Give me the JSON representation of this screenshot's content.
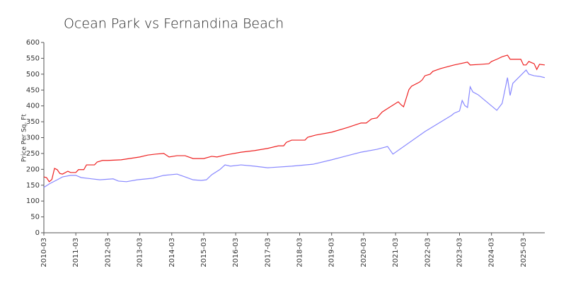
{
  "chart_data": {
    "type": "line",
    "title": "Ocean Park vs Fernandina Beach",
    "y_label": "Price Per Sq. Ft",
    "xlim": [
      "2010-03",
      "2025-11"
    ],
    "xticks": [
      "2010-03",
      "2011-03",
      "2012-03",
      "2013-03",
      "2014-03",
      "2015-03",
      "2016-03",
      "2017-03",
      "2018-03",
      "2019-03",
      "2020-03",
      "2021-03",
      "2022-03",
      "2023-03",
      "2024-03",
      "2025-03"
    ],
    "ylim": [
      0,
      600
    ],
    "yticks": [
      0,
      50,
      100,
      150,
      200,
      250,
      300,
      350,
      400,
      450,
      500,
      550,
      600
    ],
    "series": [
      {
        "color": "#ee2222",
        "x": [
          "2010-03",
          "2010-04",
          "2010-05",
          "2010-06",
          "2010-07",
          "2010-08",
          "2010-09",
          "2010-10",
          "2010-12",
          "2011-01",
          "2011-03",
          "2011-04",
          "2011-06",
          "2011-07",
          "2011-10",
          "2011-11",
          "2012-01",
          "2012-03",
          "2012-08",
          "2013-03",
          "2013-06",
          "2013-09",
          "2013-12",
          "2014-02",
          "2014-05",
          "2014-08",
          "2014-11",
          "2015-03",
          "2015-06",
          "2015-08",
          "2015-11",
          "2016-05",
          "2016-10",
          "2017-03",
          "2017-07",
          "2017-09",
          "2017-10",
          "2017-12",
          "2018-05",
          "2018-06",
          "2018-09",
          "2019-03",
          "2019-09",
          "2020-02",
          "2020-04",
          "2020-06",
          "2020-08",
          "2020-10",
          "2021-01",
          "2021-04",
          "2021-05",
          "2021-06",
          "2021-08",
          "2021-09",
          "2021-12",
          "2022-01",
          "2022-02",
          "2022-04",
          "2022-05",
          "2022-08",
          "2023-01",
          "2023-06",
          "2023-07",
          "2023-11",
          "2024-02",
          "2024-03",
          "2024-05",
          "2024-07",
          "2024-09",
          "2024-10",
          "2024-12",
          "2025-02",
          "2025-03",
          "2025-04",
          "2025-05",
          "2025-07",
          "2025-08",
          "2025-09",
          "2025-11"
        ],
        "values": [
          176,
          174,
          161,
          168,
          203,
          199,
          187,
          185,
          194,
          190,
          190,
          199,
          199,
          214,
          214,
          223,
          228,
          228,
          230,
          239,
          245,
          248,
          250,
          239,
          243,
          243,
          234,
          234,
          241,
          239,
          245,
          254,
          259,
          266,
          274,
          274,
          285,
          292,
          292,
          301,
          308,
          317,
          332,
          346,
          346,
          359,
          362,
          381,
          397,
          413,
          404,
          397,
          451,
          462,
          475,
          482,
          495,
          500,
          509,
          518,
          529,
          538,
          529,
          531,
          533,
          540,
          547,
          555,
          560,
          547,
          547,
          547,
          529,
          529,
          540,
          533,
          515,
          531,
          529
        ]
      },
      {
        "color": "#8888ff",
        "x": [
          "2010-03",
          "2010-05",
          "2010-08",
          "2010-10",
          "2011-01",
          "2011-03",
          "2011-05",
          "2011-09",
          "2011-12",
          "2012-05",
          "2012-07",
          "2012-10",
          "2013-02",
          "2013-08",
          "2013-12",
          "2014-05",
          "2014-08",
          "2014-11",
          "2015-02",
          "2015-04",
          "2015-06",
          "2015-09",
          "2015-11",
          "2016-01",
          "2016-05",
          "2016-10",
          "2017-03",
          "2017-12",
          "2018-08",
          "2019-03",
          "2019-08",
          "2020-02",
          "2020-08",
          "2020-12",
          "2021-02",
          "2022-02",
          "2022-12",
          "2023-01",
          "2023-03",
          "2023-04",
          "2023-05",
          "2023-06",
          "2023-07",
          "2023-08",
          "2023-10",
          "2024-05",
          "2024-07",
          "2024-09",
          "2024-10",
          "2024-11",
          "2025-04",
          "2025-05",
          "2025-07",
          "2025-09",
          "2025-11"
        ],
        "values": [
          143,
          154,
          167,
          176,
          181,
          181,
          174,
          170,
          167,
          170,
          163,
          161,
          167,
          172,
          181,
          185,
          176,
          167,
          165,
          167,
          183,
          199,
          214,
          210,
          214,
          210,
          205,
          210,
          216,
          230,
          241,
          254,
          263,
          272,
          248,
          319,
          370,
          377,
          384,
          417,
          401,
          395,
          460,
          444,
          435,
          386,
          408,
          489,
          433,
          471,
          513,
          500,
          495,
          493,
          489
        ]
      }
    ]
  }
}
